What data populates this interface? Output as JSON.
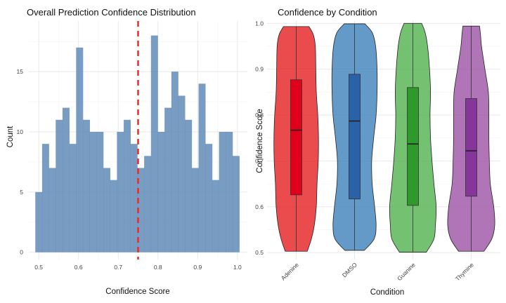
{
  "chart_data": [
    {
      "type": "bar",
      "title": "Overall Prediction Confidence Distribution",
      "xlabel": "Confidence Score",
      "ylabel": "Count",
      "xlim": [
        0.475,
        1.025
      ],
      "ylim": [
        -0.6,
        19.2
      ],
      "xticks": [
        0.5,
        0.6,
        0.7,
        0.8,
        0.9,
        1.0
      ],
      "xtick_labels": [
        "0.5",
        "0.6",
        "0.7",
        "0.8",
        "0.9",
        "1.0"
      ],
      "yticks": [
        0,
        5,
        10,
        15
      ],
      "ytick_labels": [
        "0",
        "5",
        "10",
        "15"
      ],
      "grid": true,
      "bar_color": "#5B86B5",
      "threshold": 0.75,
      "threshold_color": "#EE2A2A",
      "bin_start": 0.4913,
      "bin_width": 0.01712,
      "values": [
        5,
        9,
        7,
        11,
        12,
        9,
        17,
        11,
        10,
        10,
        7,
        6,
        10,
        11,
        9,
        7,
        8,
        18,
        10,
        12,
        15,
        13,
        11,
        7,
        14,
        9,
        6,
        10,
        10,
        8
      ]
    },
    {
      "type": "violin",
      "title": "Confidence by Condition",
      "xlabel": "Condition",
      "ylabel": "Confidence Score",
      "ylim": [
        0.485,
        1.005
      ],
      "yticks": [
        0.5,
        0.6,
        0.7,
        0.8,
        0.9,
        1.0
      ],
      "ytick_labels": [
        "0.5",
        "0.6",
        "0.7",
        "0.8",
        "0.9",
        "1.0"
      ],
      "grid": true,
      "categories": [
        "Adenine",
        "DMSO",
        "Guanine",
        "Thymine"
      ],
      "groups": [
        {
          "name": "Adenine",
          "fill": "#E41A1C",
          "box_fill": "#E0001B",
          "min": 0.503,
          "q1": 0.626,
          "median": 0.767,
          "q3": 0.877,
          "max": 0.993,
          "density_y": [
            0.503,
            0.53,
            0.56,
            0.6,
            0.65,
            0.7,
            0.75,
            0.8,
            0.85,
            0.9,
            0.95,
            0.975,
            0.993
          ],
          "density_w": [
            0.45,
            0.62,
            0.74,
            0.82,
            0.85,
            0.9,
            0.91,
            0.88,
            0.82,
            0.8,
            0.78,
            0.7,
            0.52
          ]
        },
        {
          "name": "DMSO",
          "fill": "#377EB8",
          "box_fill": "#2962A6",
          "min": 0.505,
          "q1": 0.617,
          "median": 0.787,
          "q3": 0.889,
          "max": 0.999,
          "density_y": [
            0.505,
            0.53,
            0.56,
            0.6,
            0.65,
            0.7,
            0.75,
            0.8,
            0.85,
            0.9,
            0.95,
            0.98,
            0.999
          ],
          "density_w": [
            0.4,
            0.8,
            0.88,
            0.82,
            0.72,
            0.7,
            0.78,
            0.88,
            0.92,
            0.92,
            0.86,
            0.72,
            0.42
          ]
        },
        {
          "name": "Guanine",
          "fill": "#4DAF4A",
          "box_fill": "#2E9A2B",
          "min": 0.501,
          "q1": 0.603,
          "median": 0.737,
          "q3": 0.86,
          "max": 1.0,
          "density_y": [
            0.501,
            0.53,
            0.56,
            0.6,
            0.65,
            0.7,
            0.75,
            0.8,
            0.85,
            0.9,
            0.95,
            0.98,
            1.0
          ],
          "density_w": [
            0.55,
            0.86,
            0.92,
            0.95,
            0.86,
            0.78,
            0.72,
            0.7,
            0.72,
            0.68,
            0.6,
            0.5,
            0.36
          ]
        },
        {
          "name": "Thymine",
          "fill": "#984EA3",
          "box_fill": "#86369A",
          "min": 0.503,
          "q1": 0.623,
          "median": 0.722,
          "q3": 0.836,
          "max": 0.994,
          "density_y": [
            0.503,
            0.53,
            0.56,
            0.6,
            0.65,
            0.7,
            0.75,
            0.8,
            0.85,
            0.9,
            0.95,
            0.975,
            0.994
          ],
          "density_w": [
            0.52,
            0.84,
            0.96,
            0.92,
            0.78,
            0.74,
            0.72,
            0.72,
            0.7,
            0.56,
            0.42,
            0.38,
            0.34
          ]
        }
      ]
    }
  ]
}
